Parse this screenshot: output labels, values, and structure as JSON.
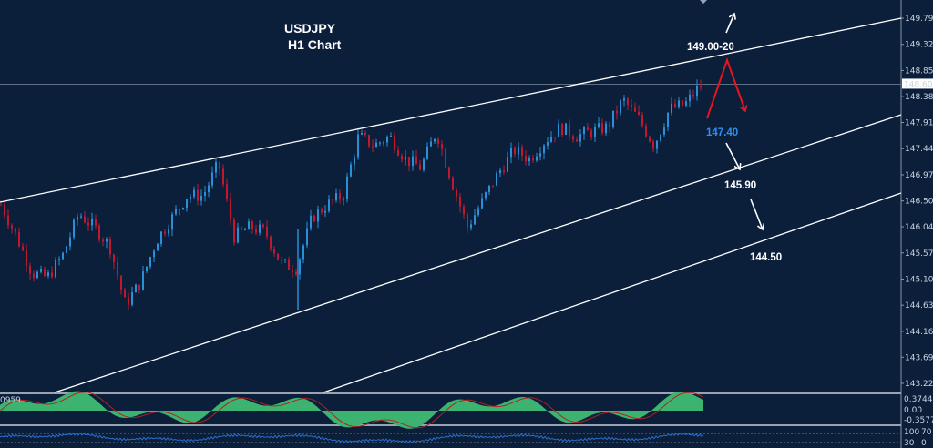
{
  "chart_data": {
    "type": "candlestick",
    "title": "USDJPY",
    "subtitle": "H1 Chart",
    "yaxis_ticks": [
      "149.790",
      "149.320",
      "148.850",
      "148.380",
      "147.915",
      "147.445",
      "146.975",
      "146.505",
      "146.040",
      "145.570",
      "145.100",
      "144.630",
      "144.160",
      "143.695",
      "143.225"
    ],
    "ylim": [
      143.225,
      149.79
    ],
    "current_price": "148.604",
    "closes": [
      146.44,
      145.87,
      145.21,
      145.13,
      145.54,
      146.28,
      146.03,
      145.7,
      144.64,
      145.05,
      145.79,
      146.2,
      146.6,
      146.6,
      147.18,
      145.87,
      146.03,
      145.95,
      145.38,
      145.3,
      146.2,
      146.44,
      146.6,
      147.67,
      147.5,
      147.67,
      147.26,
      147.1,
      147.75,
      146.85,
      146.03,
      146.52,
      147.01,
      147.42,
      147.26,
      147.59,
      147.83,
      147.67,
      147.75,
      147.83,
      148.32,
      147.99,
      147.5,
      148.16,
      148.24,
      148.6
    ],
    "annotations": {
      "target_high": "149.00-20",
      "pivot": "147.40",
      "support_1": "145.90",
      "support_2": "144.50"
    },
    "colors": {
      "background": "#0b1f3a",
      "up": "#2a8fd6",
      "down": "#c0182e",
      "trendline": "#ffffff",
      "pivot": "#2f8ff0",
      "arrow_red": "#e8141e",
      "histogram": "#3cb371",
      "signal": "#b22222",
      "oscillator": "#2a6fd0"
    },
    "indicator_1": {
      "ticks": [
        "0.3744",
        "0.00",
        "-0.3577"
      ],
      "partial_label": "0959"
    },
    "indicator_2": {
      "ticks": [
        "100",
        "70",
        "30",
        "0"
      ]
    },
    "grid": false
  }
}
